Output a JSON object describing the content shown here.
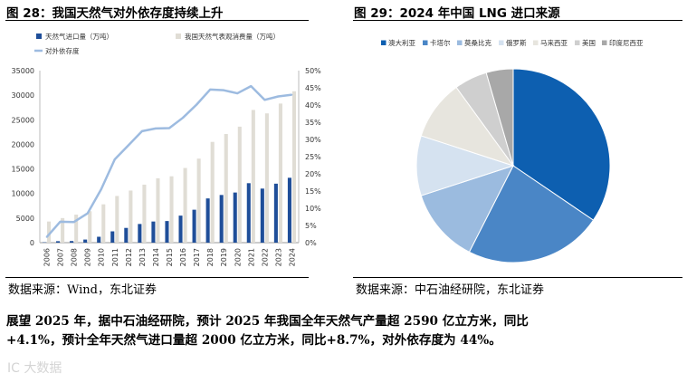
{
  "left_figure": {
    "title": "图 28：我国天然气对外依存度持续上升",
    "source": "数据来源：Wind，东北证券"
  },
  "right_figure": {
    "title": "图 29：2024 年中国 LNG 进口来源",
    "source": "数据来源：中石油经研院，东北证券"
  },
  "paragraph": "展望 2025 年，据中石油经研院，预计 2025 年我国全年天然气产量超 2590 亿立方米，同比+4.1%，预计全年天然气进口量超 2000 亿立方米，同比+8.7%，对外依存度为 44%。",
  "watermark": "IC  大数据",
  "chart_data": [
    {
      "type": "bar",
      "title": "我国天然气对外依存度持续上升",
      "categories": [
        "2006",
        "2007",
        "2008",
        "2009",
        "2010",
        "2011",
        "2012",
        "2013",
        "2014",
        "2015",
        "2016",
        "2017",
        "2018",
        "2019",
        "2020",
        "2021",
        "2022",
        "2023",
        "2024"
      ],
      "series": [
        {
          "name": "天然气进口量（万吨）",
          "type": "bar",
          "axis": "left",
          "color": "#1f4e99",
          "values": [
            70,
            300,
            330,
            630,
            1200,
            2300,
            3000,
            3800,
            4300,
            4400,
            5500,
            6700,
            9000,
            9700,
            10200,
            12100,
            11000,
            12000,
            13200
          ]
        },
        {
          "name": "我国天然气表观消费量（万吨）",
          "type": "bar",
          "axis": "left",
          "color": "#e0ddd5",
          "values": [
            4300,
            5000,
            5700,
            6400,
            7800,
            9500,
            10600,
            11800,
            13100,
            13500,
            15200,
            17100,
            20500,
            22100,
            23600,
            27000,
            26300,
            28300,
            30800
          ]
        },
        {
          "name": "对外依存度",
          "type": "line",
          "axis": "right",
          "color": "#9dbbe0",
          "values": [
            1.6,
            6.1,
            6.0,
            8.5,
            15.5,
            24.2,
            28.3,
            32.4,
            33.2,
            33.3,
            36.3,
            40.1,
            44.5,
            44.3,
            43.4,
            45.5,
            41.5,
            42.5,
            43.0
          ]
        }
      ],
      "ylim_left": [
        0,
        35000
      ],
      "yticks_left": [
        "0",
        "5000",
        "10000",
        "15000",
        "20000",
        "25000",
        "30000",
        "35000"
      ],
      "ylim_right": [
        0,
        50
      ],
      "yticks_right": [
        "0%",
        "5%",
        "10%",
        "15%",
        "20%",
        "25%",
        "30%",
        "35%",
        "40%",
        "45%",
        "50%"
      ],
      "legend": [
        "天然气进口量（万吨）",
        "我国天然气表观消费量（万吨）",
        "对外依存度"
      ]
    },
    {
      "type": "pie",
      "title": "2024 年中国 LNG 进口来源",
      "labels": [
        "澳大利亚",
        "卡塔尔",
        "莫桑比克",
        "俄罗斯",
        "马来西亚",
        "美国",
        "印度尼西亚"
      ],
      "values": [
        34.5,
        23.0,
        12.5,
        10.0,
        10.0,
        5.5,
        4.5
      ],
      "colors": [
        "#0d5fb0",
        "#4a86c6",
        "#9bbbdf",
        "#d5e2f0",
        "#e7e5de",
        "#cfcfcf",
        "#a8a8a8"
      ],
      "legend": "top"
    }
  ]
}
